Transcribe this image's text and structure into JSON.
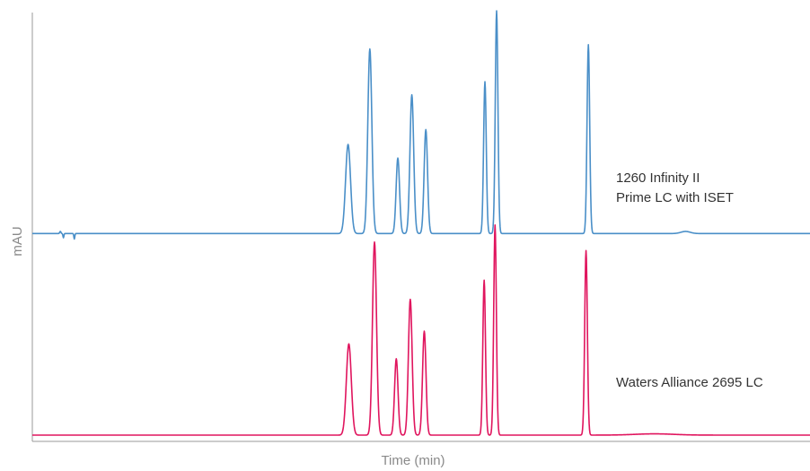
{
  "chart_data": {
    "type": "line",
    "title": "",
    "xlabel": "Time (min)",
    "ylabel": "mAU",
    "xlim": [
      0,
      100
    ],
    "ylim": [
      0,
      100
    ],
    "grid": false,
    "legend": "inline-right",
    "series": [
      {
        "name": "1260 Infinity II Prime LC with ISET",
        "label_lines": [
          "1260 Infinity II",
          "Prime LC with ISET"
        ],
        "color": "#4a8fc8",
        "baseline": 47.5,
        "peaks": [
          {
            "t": 40.6,
            "h": 21.0,
            "w": 0.32
          },
          {
            "t": 43.4,
            "h": 43.5,
            "w": 0.26
          },
          {
            "t": 47.0,
            "h": 17.8,
            "w": 0.22
          },
          {
            "t": 48.8,
            "h": 32.7,
            "w": 0.24
          },
          {
            "t": 50.6,
            "h": 24.5,
            "w": 0.22
          },
          {
            "t": 58.2,
            "h": 35.8,
            "w": 0.17
          },
          {
            "t": 59.7,
            "h": 52.5,
            "w": 0.17
          },
          {
            "t": 71.5,
            "h": 44.5,
            "w": 0.17
          },
          {
            "t": 84.0,
            "h": 0.5,
            "w": 0.6
          },
          {
            "t": 3.6,
            "h": 0.5,
            "w": 0.08
          },
          {
            "t": 4.0,
            "h": -1.0,
            "w": 0.06
          },
          {
            "t": 5.4,
            "h": -1.3,
            "w": 0.06
          }
        ]
      },
      {
        "name": "Waters Alliance 2695 LC",
        "label_lines": [
          "Waters Alliance 2695 LC"
        ],
        "color": "#e0155e",
        "baseline": 0.0,
        "peaks": [
          {
            "t": 40.7,
            "h": 21.5,
            "w": 0.32
          },
          {
            "t": 44.0,
            "h": 45.5,
            "w": 0.26
          },
          {
            "t": 46.8,
            "h": 18.0,
            "w": 0.22
          },
          {
            "t": 48.6,
            "h": 32.0,
            "w": 0.24
          },
          {
            "t": 50.4,
            "h": 24.5,
            "w": 0.22
          },
          {
            "t": 58.1,
            "h": 36.5,
            "w": 0.17
          },
          {
            "t": 59.5,
            "h": 49.5,
            "w": 0.17
          },
          {
            "t": 71.2,
            "h": 43.5,
            "w": 0.17
          },
          {
            "t": 80.0,
            "h": 0.3,
            "w": 2.5
          }
        ]
      }
    ]
  }
}
